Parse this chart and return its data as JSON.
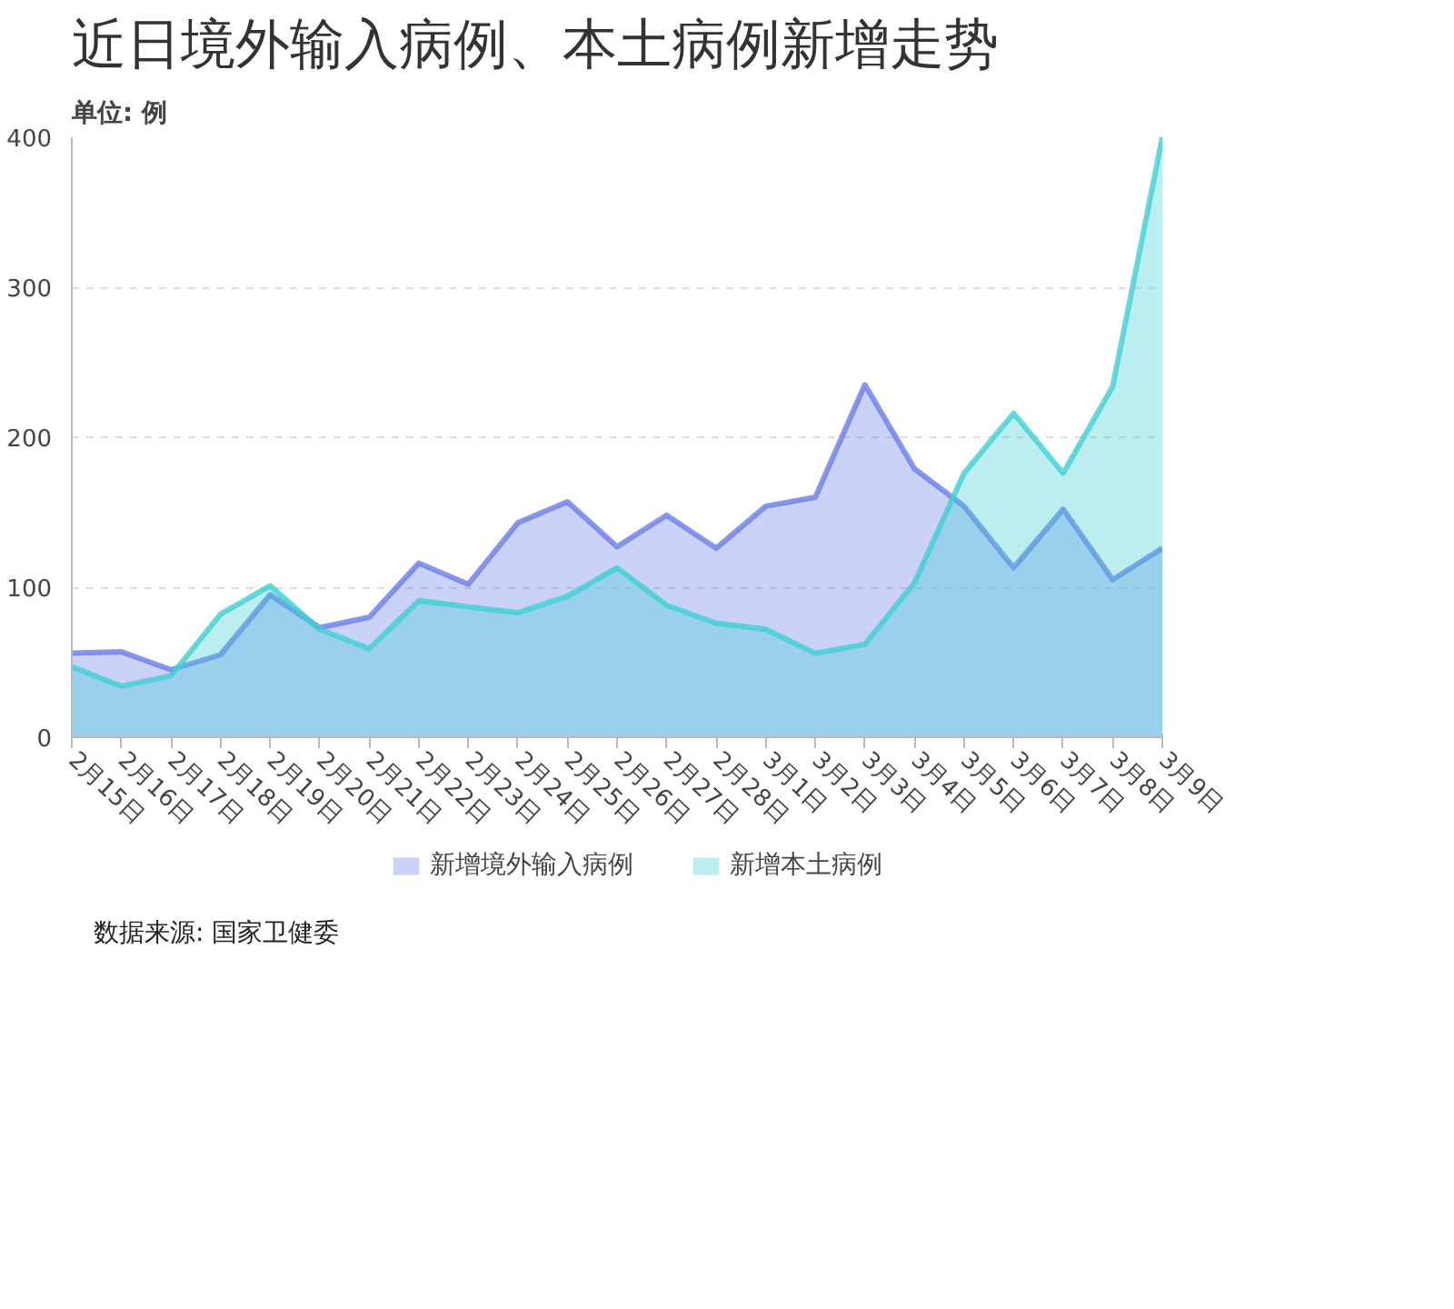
{
  "chart_data": {
    "type": "area",
    "title": "近日境外输入病例、本土病例新增走势",
    "subtitle": "单位: 例",
    "categories": [
      "2月15日",
      "2月16日",
      "2月17日",
      "2月18日",
      "2月19日",
      "2月20日",
      "2月21日",
      "2月22日",
      "2月23日",
      "2月24日",
      "2月25日",
      "2月26日",
      "2月27日",
      "2月28日",
      "3月1日",
      "3月2日",
      "3月3日",
      "3月4日",
      "3月5日",
      "3月6日",
      "3月7日",
      "3月8日",
      "3月9日"
    ],
    "series": [
      {
        "name": "新增境外输入病例",
        "color": "#6a7de8",
        "values": [
          56,
          57,
          45,
          55,
          95,
          73,
          80,
          116,
          102,
          143,
          157,
          127,
          148,
          126,
          154,
          160,
          235,
          179,
          154,
          113,
          152,
          105,
          126
        ]
      },
      {
        "name": "新增本土病例",
        "color": "#3ecfd4",
        "values": [
          47,
          34,
          41,
          82,
          101,
          72,
          59,
          91,
          87,
          83,
          94,
          113,
          88,
          76,
          72,
          56,
          62,
          103,
          176,
          216,
          176,
          234,
          400
        ]
      }
    ],
    "ylim": [
      0,
      400
    ],
    "yticks": [
      0,
      100,
      200,
      300,
      400
    ],
    "grid": "y",
    "legend": "bottom",
    "annotations": [
      "数据来源: 国家卫健委"
    ]
  }
}
